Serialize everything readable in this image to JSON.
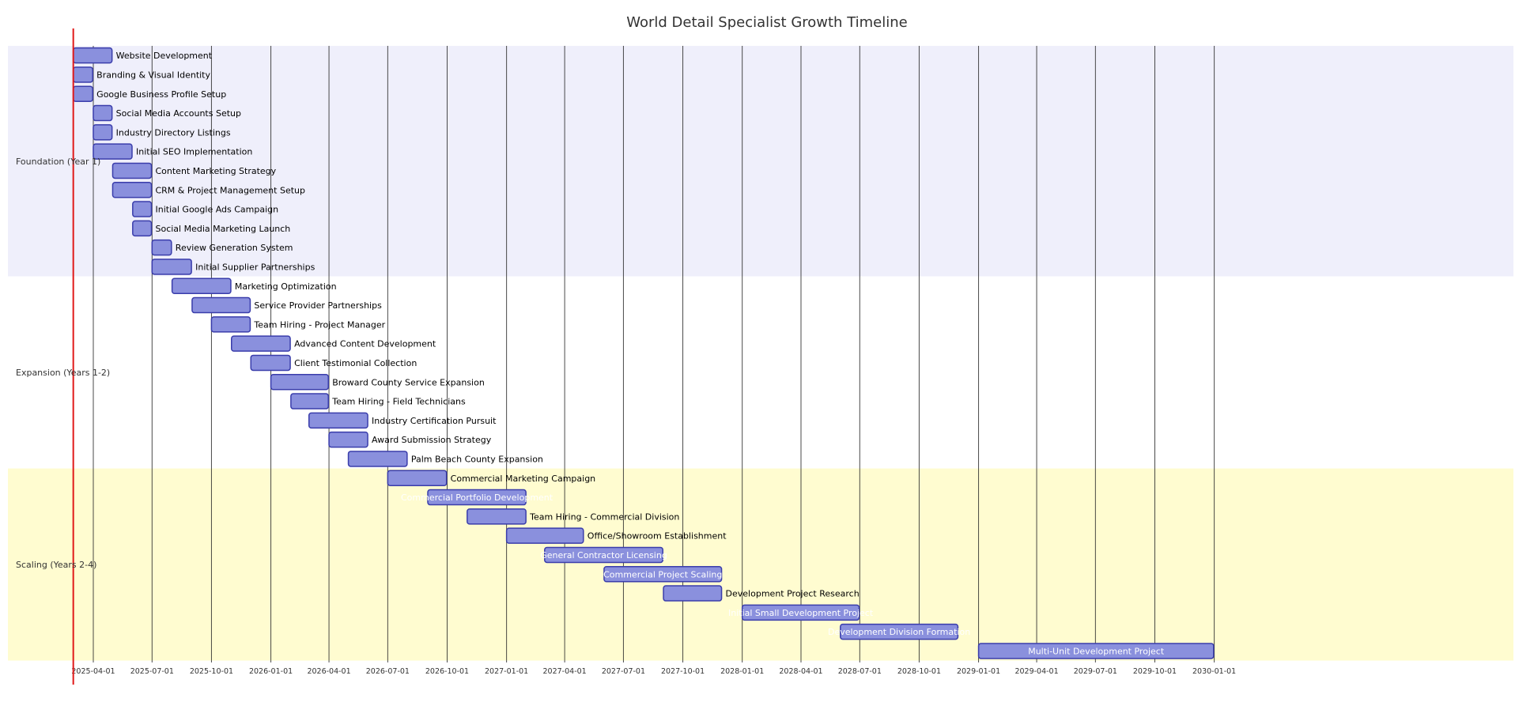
{
  "chart_data": {
    "type": "gantt",
    "title": "World Detail Specialist Growth Timeline",
    "today": "2025-03-01",
    "x_ticks": [
      "2025-04-01",
      "2025-07-01",
      "2025-10-01",
      "2026-01-01",
      "2026-04-01",
      "2026-07-01",
      "2026-10-01",
      "2027-01-01",
      "2027-04-01",
      "2027-07-01",
      "2027-10-01",
      "2028-01-01",
      "2028-04-01",
      "2028-07-01",
      "2028-10-01",
      "2029-01-01",
      "2029-04-01",
      "2029-07-01",
      "2029-10-01",
      "2030-01-01"
    ],
    "colors": {
      "bar_fill": "#8a90dd",
      "bar_stroke": "#3a3dab",
      "today_line": "#e01a1a",
      "section_bg": [
        "#efeffb",
        "#ffffff",
        "#fffcd0"
      ],
      "grid": "#2a2a2a"
    },
    "sections": [
      {
        "name": "Foundation (Year 1)",
        "tasks": [
          {
            "name": "Website Development",
            "start": "2025-03-01",
            "end": "2025-04-30"
          },
          {
            "name": "Branding & Visual Identity",
            "start": "2025-03-01",
            "end": "2025-03-31"
          },
          {
            "name": "Google Business Profile Setup",
            "start": "2025-03-01",
            "end": "2025-03-31"
          },
          {
            "name": "Social Media Accounts Setup",
            "start": "2025-04-01",
            "end": "2025-04-30"
          },
          {
            "name": "Industry Directory Listings",
            "start": "2025-04-01",
            "end": "2025-04-30"
          },
          {
            "name": "Initial SEO Implementation",
            "start": "2025-04-01",
            "end": "2025-05-31"
          },
          {
            "name": "Content Marketing Strategy",
            "start": "2025-05-01",
            "end": "2025-06-30"
          },
          {
            "name": "CRM & Project Management Setup",
            "start": "2025-05-01",
            "end": "2025-06-30"
          },
          {
            "name": "Initial Google Ads Campaign",
            "start": "2025-06-01",
            "end": "2025-06-30"
          },
          {
            "name": "Social Media Marketing Launch",
            "start": "2025-06-01",
            "end": "2025-06-30"
          },
          {
            "name": "Review Generation System",
            "start": "2025-07-01",
            "end": "2025-07-31"
          },
          {
            "name": "Initial Supplier Partnerships",
            "start": "2025-07-01",
            "end": "2025-08-31"
          }
        ]
      },
      {
        "name": "Expansion (Years 1-2)",
        "tasks": [
          {
            "name": "Marketing Optimization",
            "start": "2025-08-01",
            "end": "2025-10-31"
          },
          {
            "name": "Service Provider Partnerships",
            "start": "2025-09-01",
            "end": "2025-11-30"
          },
          {
            "name": "Team Hiring - Project Manager",
            "start": "2025-10-01",
            "end": "2025-11-30"
          },
          {
            "name": "Advanced Content Development",
            "start": "2025-11-01",
            "end": "2026-01-31"
          },
          {
            "name": "Client Testimonial Collection",
            "start": "2025-12-01",
            "end": "2026-01-31"
          },
          {
            "name": "Broward County Service Expansion",
            "start": "2026-01-01",
            "end": "2026-03-31"
          },
          {
            "name": "Team Hiring - Field Technicians",
            "start": "2026-02-01",
            "end": "2026-03-31"
          },
          {
            "name": "Industry Certification Pursuit",
            "start": "2026-03-01",
            "end": "2026-05-31"
          },
          {
            "name": "Award Submission Strategy",
            "start": "2026-04-01",
            "end": "2026-05-31"
          },
          {
            "name": "Palm Beach County Expansion",
            "start": "2026-05-01",
            "end": "2026-07-31"
          }
        ]
      },
      {
        "name": "Scaling (Years 2-4)",
        "tasks": [
          {
            "name": "Commercial Marketing Campaign",
            "start": "2026-07-01",
            "end": "2026-09-30"
          },
          {
            "name": "Commercial Portfolio Development",
            "start": "2026-09-01",
            "end": "2027-01-31",
            "label_inside": true
          },
          {
            "name": "Team Hiring - Commercial Division",
            "start": "2026-11-01",
            "end": "2027-01-31"
          },
          {
            "name": "Office/Showroom Establishment",
            "start": "2027-01-01",
            "end": "2027-04-30"
          },
          {
            "name": "General Contractor Licensing",
            "start": "2027-03-01",
            "end": "2027-08-31",
            "label_inside": true
          },
          {
            "name": "Commercial Project Scaling",
            "start": "2027-06-01",
            "end": "2027-11-30",
            "label_inside": true
          },
          {
            "name": "Development Project Research",
            "start": "2027-09-01",
            "end": "2027-11-30"
          },
          {
            "name": "Initial Small Development Project",
            "start": "2028-01-01",
            "end": "2028-06-30",
            "label_inside": true
          },
          {
            "name": "Development Division Formation",
            "start": "2028-06-01",
            "end": "2028-11-30",
            "label_inside": true
          },
          {
            "name": "Multi-Unit Development Project",
            "start": "2029-01-01",
            "end": "2029-12-31",
            "label_inside": true
          }
        ]
      }
    ]
  }
}
